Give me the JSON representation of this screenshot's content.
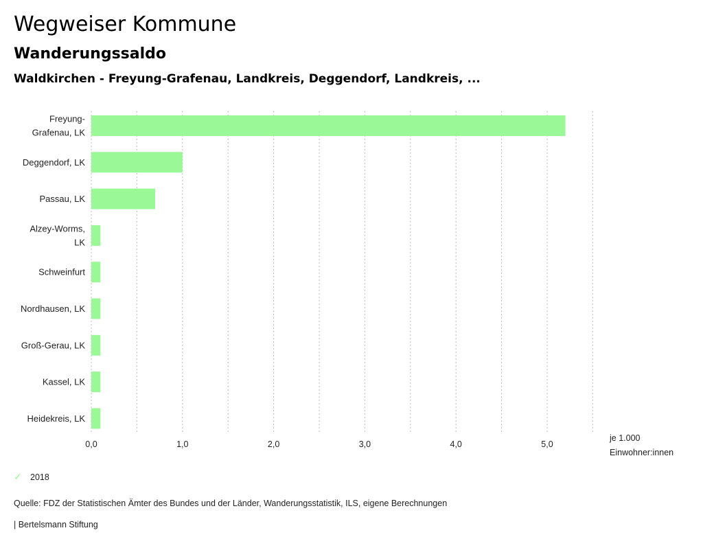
{
  "header": {
    "title": "Wegweiser Kommune",
    "subtitle": "Wanderungssaldo",
    "region": "Waldkirchen - Freyung-Grafenau, Landkreis, Deggendorf, Landkreis, ..."
  },
  "colors": {
    "bar": "#9bf896",
    "grid": "#bbbbbb"
  },
  "chart_data": {
    "type": "bar",
    "orientation": "horizontal",
    "title": "Wanderungssaldo",
    "categories": [
      [
        "Freyung-",
        "Grafenau, LK"
      ],
      [
        "Deggendorf, LK"
      ],
      [
        "Passau, LK"
      ],
      [
        "Alzey-Worms,",
        "LK"
      ],
      [
        "Schweinfurt"
      ],
      [
        "Nordhausen, LK"
      ],
      [
        "Groß-Gerau, LK"
      ],
      [
        "Kassel, LK"
      ],
      [
        "Heidekreis, LK"
      ]
    ],
    "series": [
      {
        "name": "2018",
        "values": [
          5.2,
          1.0,
          0.7,
          0.1,
          0.1,
          0.1,
          0.1,
          0.1,
          0.1
        ]
      }
    ],
    "xlim": [
      0,
      5.5
    ],
    "grid_step": 0.5,
    "ticks": [
      0,
      1,
      2,
      3,
      4,
      5
    ],
    "tick_labels": [
      "0,0",
      "1,0",
      "2,0",
      "3,0",
      "4,0",
      "5,0"
    ],
    "xlabel": [
      "je 1.000",
      "Einwohner:innen"
    ],
    "ylabel": "",
    "grid": true,
    "legend_position": "bottom-left"
  },
  "legend": {
    "label": "2018",
    "icon": "check-icon"
  },
  "footer": {
    "source": "Quelle: FDZ der Statistischen Ämter des Bundes und der Länder, Wanderungsstatistik, ILS, eigene Berechnungen",
    "credit": "| Bertelsmann Stiftung"
  }
}
